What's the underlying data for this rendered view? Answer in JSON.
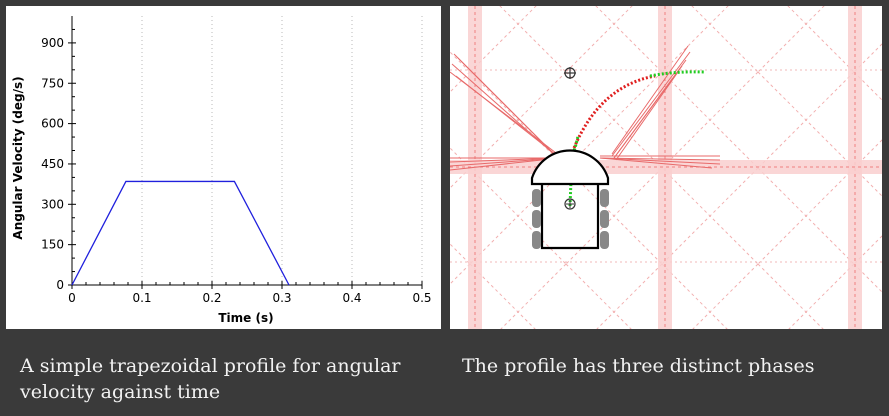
{
  "chart_data": {
    "type": "line",
    "xlabel": "Time (s)",
    "ylabel": "Angular Velocity (deg/s)",
    "xlim": [
      0,
      0.5
    ],
    "ylim": [
      0,
      1000
    ],
    "x_ticks": [
      0,
      0.1,
      0.2,
      0.3,
      0.4,
      0.5
    ],
    "x_tick_labels": [
      "0",
      "0.1",
      "0.2",
      "0.3",
      "0.4",
      "0.5"
    ],
    "y_ticks": [
      0,
      150,
      300,
      450,
      600,
      750,
      900
    ],
    "y_tick_labels": [
      "0",
      "150",
      "300",
      "450",
      "600",
      "750",
      "900"
    ],
    "grid": "vertical dotted",
    "series": [
      {
        "color": "#2020dd",
        "x": [
          0,
          0.077,
          0.232,
          0.31
        ],
        "y": [
          0,
          385,
          385,
          0
        ]
      }
    ]
  },
  "captions": {
    "left": "A simple trapezoidal profile for angular velocity against time",
    "right": "The profile has three distinct phases"
  },
  "colors": {
    "background": "#3a3a3a",
    "path_red": "#e02020",
    "path_green": "#22cc22",
    "grid_pink": "#f4b8b8"
  }
}
